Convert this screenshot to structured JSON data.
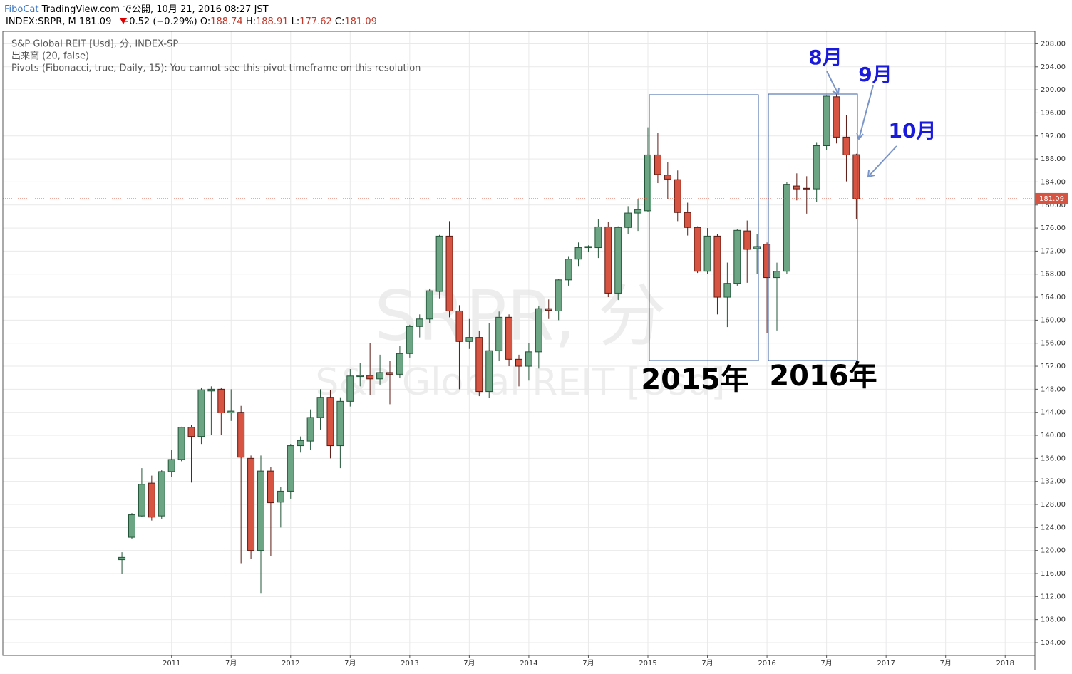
{
  "header": {
    "author": "FiboCat",
    "published": "TradingView.com で公開, 10月 21, 2016 08:27 JST",
    "symbol": "INDEX:SRPR, M",
    "change": "−0.52 (−0.29%)",
    "o_label": "O:",
    "h_label": "H:",
    "l_label": "L:",
    "c_label": "C:"
  },
  "legend": [
    "S&P Global REIT [Usd], 分, INDEX-SP",
    "出来高 (20, false)",
    "Pivots (Fibonacci, true, Daily, 15): You cannot see this pivot timeframe on this resolution"
  ],
  "watermark": {
    "symbol": "SRPR, 分",
    "name": "S&P Global REIT [Usd]"
  },
  "annotations": [
    "8月",
    "9月",
    "10月",
    "2015年",
    "2016年"
  ],
  "chart_data": {
    "type": "candlestick",
    "up_color": "#6ba583",
    "down_color": "#d75442",
    "grid": true,
    "price_line_color": "#d75442",
    "x": [
      "2010-08",
      "2010-09",
      "2010-10",
      "2010-11",
      "2010-12",
      "2011-01",
      "2011-02",
      "2011-03",
      "2011-04",
      "2011-05",
      "2011-06",
      "2011-07",
      "2011-08",
      "2011-09",
      "2011-10",
      "2011-11",
      "2011-12",
      "2012-01",
      "2012-02",
      "2012-03",
      "2012-04",
      "2012-05",
      "2012-06",
      "2012-07",
      "2012-08",
      "2012-09",
      "2012-10",
      "2012-11",
      "2012-12",
      "2013-01",
      "2013-02",
      "2013-03",
      "2013-04",
      "2013-05",
      "2013-06",
      "2013-07",
      "2013-08",
      "2013-09",
      "2013-10",
      "2013-11",
      "2013-12",
      "2014-01",
      "2014-02",
      "2014-03",
      "2014-04",
      "2014-05",
      "2014-06",
      "2014-07",
      "2014-08",
      "2014-09",
      "2014-10",
      "2014-11",
      "2014-12",
      "2015-01",
      "2015-02",
      "2015-03",
      "2015-04",
      "2015-05",
      "2015-06",
      "2015-07",
      "2015-08",
      "2015-09",
      "2015-10",
      "2015-11",
      "2015-12",
      "2016-01",
      "2016-02",
      "2016-03",
      "2016-04",
      "2016-05",
      "2016-06",
      "2016-07",
      "2016-08",
      "2016-09",
      "2016-10"
    ],
    "open": [
      118.4,
      122.3,
      126,
      131.7,
      126,
      133.7,
      135.8,
      141.4,
      139.8,
      147.7,
      148,
      143.9,
      144,
      136,
      120,
      133.8,
      128.4,
      130.3,
      138.2,
      139,
      143.1,
      146.6,
      138.2,
      145.9,
      150.2,
      150.4,
      149.8,
      150.9,
      150.6,
      154.2,
      158.9,
      160.2,
      165,
      174.6,
      161.6,
      156.3,
      157,
      147.6,
      154.7,
      160.5,
      153.2,
      152,
      154.5,
      162,
      161.6,
      167,
      170.6,
      172.6,
      172.6,
      176.2,
      164.7,
      176.1,
      178.6,
      179,
      188.7,
      185.2,
      184.4,
      178.7,
      176.1,
      168.5,
      174.6,
      164,
      166.4,
      175.5,
      172.4,
      173.2,
      167.4,
      168.5,
      183.3,
      182.9,
      182.8,
      190.3,
      198.8,
      191.8,
      188.74
    ],
    "high": [
      119.7,
      126.5,
      134.3,
      133,
      134,
      137.5,
      141.5,
      141.8,
      148.3,
      148.5,
      148.3,
      148,
      145.1,
      136.5,
      136.5,
      134.5,
      131,
      138.5,
      139.8,
      144.5,
      148,
      147.8,
      146.6,
      151.5,
      152.5,
      156,
      154,
      153,
      155.5,
      159.2,
      161,
      165.5,
      174.8,
      177.2,
      162.6,
      160.2,
      158.2,
      159.5,
      161.5,
      161,
      154,
      156,
      162.4,
      163.6,
      167.2,
      171,
      173.5,
      173,
      177.5,
      177,
      176.3,
      179.8,
      181,
      193.5,
      192.5,
      187.4,
      186,
      180.4,
      176.3,
      176,
      175,
      170,
      175.8,
      177.3,
      175,
      173.5,
      170,
      184,
      185.5,
      185,
      190.8,
      199,
      199.2,
      195.6,
      188.91
    ],
    "low": [
      116,
      122,
      125.8,
      125.2,
      125.5,
      132.8,
      135.5,
      131.8,
      138.5,
      140,
      140,
      142.5,
      117.8,
      118.5,
      112.5,
      119,
      124,
      129,
      137,
      137.5,
      141,
      136,
      134.3,
      145,
      148.5,
      147,
      148.8,
      145.4,
      150,
      153.5,
      157,
      159.5,
      163.8,
      160.5,
      148,
      155,
      146.8,
      146.5,
      153,
      152,
      148.5,
      149.5,
      151.6,
      160.2,
      160,
      166,
      169.3,
      171.8,
      170.8,
      164,
      163.5,
      175,
      175.5,
      178.8,
      183.8,
      181,
      177.2,
      174.7,
      168.2,
      168,
      161,
      158.8,
      166,
      166.5,
      168,
      157.8,
      158.2,
      168,
      180.8,
      178.5,
      180.5,
      189.5,
      190.7,
      184.1,
      177.62
    ],
    "close": [
      118.8,
      126.2,
      131.5,
      125.8,
      133.7,
      135.8,
      141.4,
      139.8,
      147.9,
      148,
      143.9,
      144.2,
      136.2,
      120,
      133.8,
      128.3,
      130.3,
      138.2,
      139.1,
      143.1,
      146.6,
      138.2,
      145.9,
      150.3,
      150.4,
      149.8,
      150.9,
      150.6,
      154.2,
      158.9,
      160.2,
      165.1,
      174.6,
      161.6,
      156.3,
      157,
      147.6,
      154.7,
      160.5,
      153.2,
      152,
      154.5,
      162,
      161.7,
      167,
      170.6,
      172.6,
      172.8,
      176.2,
      164.7,
      176.1,
      178.6,
      179.2,
      188.7,
      185.3,
      184.5,
      178.7,
      176.1,
      168.5,
      174.6,
      164,
      166.4,
      175.6,
      172.3,
      172.8,
      167.4,
      168.5,
      183.6,
      182.8,
      182.8,
      190.3,
      198.9,
      191.8,
      188.7,
      181.09
    ],
    "xlim": [
      "2009-08",
      "2018-04"
    ],
    "xticks": [
      {
        "value": "2011-01",
        "label": "2011"
      },
      {
        "value": "2011-07",
        "label": "7月"
      },
      {
        "value": "2012-01",
        "label": "2012"
      },
      {
        "value": "2012-07",
        "label": "7月"
      },
      {
        "value": "2013-01",
        "label": "2013"
      },
      {
        "value": "2013-07",
        "label": "7月"
      },
      {
        "value": "2014-01",
        "label": "2014"
      },
      {
        "value": "2014-07",
        "label": "7月"
      },
      {
        "value": "2015-01",
        "label": "2015"
      },
      {
        "value": "2015-07",
        "label": "7月"
      },
      {
        "value": "2016-01",
        "label": "2016"
      },
      {
        "value": "2016-07",
        "label": "7月"
      },
      {
        "value": "2017-01",
        "label": "2017"
      },
      {
        "value": "2017-07",
        "label": "7月"
      },
      {
        "value": "2018-01",
        "label": "2018"
      }
    ],
    "ylim": [
      101.77,
      210.16
    ],
    "yticks": [
      {
        "value": 104,
        "label": "104.00"
      },
      {
        "value": 108,
        "label": "108.00"
      },
      {
        "value": 112,
        "label": "112.00"
      },
      {
        "value": 116,
        "label": "116.00"
      },
      {
        "value": 120,
        "label": "120.00"
      },
      {
        "value": 124,
        "label": "124.00"
      },
      {
        "value": 128,
        "label": "128.00"
      },
      {
        "value": 132,
        "label": "132.00"
      },
      {
        "value": 136,
        "label": "136.00"
      },
      {
        "value": 140,
        "label": "140.00"
      },
      {
        "value": 144,
        "label": "144.00"
      },
      {
        "value": 148,
        "label": "148.00"
      },
      {
        "value": 152,
        "label": "152.00"
      },
      {
        "value": 156,
        "label": "156.00"
      },
      {
        "value": 160,
        "label": "160.00"
      },
      {
        "value": 164,
        "label": "164.00"
      },
      {
        "value": 168,
        "label": "168.00"
      },
      {
        "value": 172,
        "label": "172.00"
      },
      {
        "value": 176,
        "label": "176.00"
      },
      {
        "value": 180,
        "label": "180.00"
      },
      {
        "value": 184,
        "label": "184.00"
      },
      {
        "value": 188,
        "label": "188.00"
      },
      {
        "value": 192,
        "label": "192.00"
      },
      {
        "value": 196,
        "label": "196.00"
      },
      {
        "value": 200,
        "label": "200.00"
      },
      {
        "value": 204,
        "label": "204.00"
      },
      {
        "value": 208,
        "label": "208.00"
      }
    ]
  }
}
